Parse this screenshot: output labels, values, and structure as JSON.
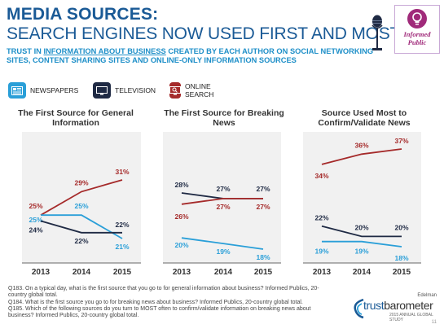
{
  "header": {
    "title_line1": "MEDIA SOURCES:",
    "title_line2": "SEARCH ENGINES NOW USED FIRST AND MOST",
    "subtitle_pre": "TRUST IN ",
    "subtitle_link": "INFORMATION ABOUT BUSINESS",
    "subtitle_post": " CREATED BY EACH AUTHOR ON SOCIAL NETWORKING SITES, CONTENT SHARING SITES AND ONLINE-ONLY INFORMATION SOURCES"
  },
  "brand": {
    "text": "Informed Public",
    "color": "#a02a7a"
  },
  "legend": [
    {
      "label": "NEWSPAPERS",
      "color": "#2a9fd8",
      "icon": "newspaper-icon"
    },
    {
      "label": "TELEVISION",
      "color": "#1f2a44",
      "icon": "television-icon"
    },
    {
      "label": "ONLINE SEARCH",
      "color": "#a52a2a",
      "icon": "search-screen-icon"
    }
  ],
  "chart_data": [
    {
      "type": "line",
      "title": "The First Source for General Information",
      "categories": [
        "2013",
        "2014",
        "2015"
      ],
      "ylim": [
        15,
        35
      ],
      "series": [
        {
          "name": "ONLINE SEARCH",
          "color": "#a52a2a",
          "values": [
            25,
            29,
            31
          ],
          "labels": [
            "25%",
            "29%",
            "31%"
          ]
        },
        {
          "name": "NEWSPAPERS",
          "color": "#2a9fd8",
          "values": [
            25,
            25,
            21
          ],
          "labels": [
            "25%",
            "25%",
            "21%"
          ]
        },
        {
          "name": "TELEVISION",
          "color": "#1f2a44",
          "values": [
            24,
            22,
            22
          ],
          "labels": [
            "24%",
            "22%",
            "22%"
          ]
        }
      ]
    },
    {
      "type": "line",
      "title": "The First Source for Breaking News",
      "categories": [
        "2013",
        "2014",
        "2015"
      ],
      "ylim": [
        15,
        35
      ],
      "series": [
        {
          "name": "TELEVISION",
          "color": "#1f2a44",
          "values": [
            28,
            27,
            27
          ],
          "labels": [
            "28%",
            "27%",
            "27%"
          ]
        },
        {
          "name": "ONLINE SEARCH",
          "color": "#a52a2a",
          "values": [
            26,
            27,
            27
          ],
          "labels": [
            "26%",
            "27%",
            "27%"
          ]
        },
        {
          "name": "NEWSPAPERS",
          "color": "#2a9fd8",
          "values": [
            20,
            19,
            18
          ],
          "labels": [
            "20%",
            "19%",
            "18%"
          ]
        }
      ]
    },
    {
      "type": "line",
      "title": "Source Used Most to Confirm/Validate News",
      "categories": [
        "2013",
        "2014",
        "2015"
      ],
      "ylim": [
        15,
        40
      ],
      "series": [
        {
          "name": "ONLINE SEARCH",
          "color": "#a52a2a",
          "values": [
            34,
            36,
            37
          ],
          "labels": [
            "34%",
            "36%",
            "37%"
          ]
        },
        {
          "name": "TELEVISION",
          "color": "#1f2a44",
          "values": [
            22,
            20,
            20
          ],
          "labels": [
            "22%",
            "20%",
            "20%"
          ]
        },
        {
          "name": "NEWSPAPERS",
          "color": "#2a9fd8",
          "values": [
            19,
            19,
            18
          ],
          "labels": [
            "19%",
            "19%",
            "18%"
          ]
        }
      ]
    }
  ],
  "footnotes": [
    "Q183. On a typical day, what is the first source that you go to for general information about business? Informed Publics, 20-country global total.",
    "Q184. What is the first source you go to for breaking news about business? Informed Publics, 20-country global total.",
    "Q185. Which of the following sources do you turn to MOST often to confirm/validate information on breaking news about business? Informed Publics, 20-country global total."
  ],
  "footer_logo": {
    "edelman": "Edelman",
    "name_a": "trust",
    "name_b": "barometer",
    "sub": "2015 ANNUAL GLOBAL STUDY",
    "page": "11"
  }
}
